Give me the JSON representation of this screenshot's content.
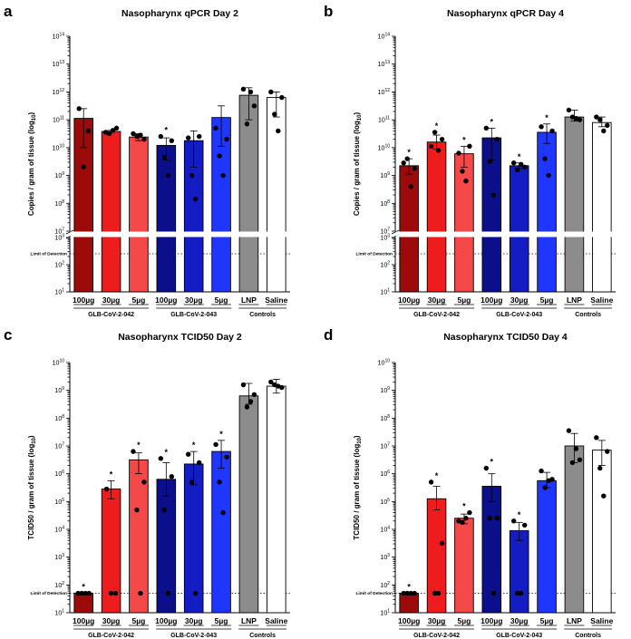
{
  "colors": {
    "dark_red": "#9c0a0a",
    "red": "#ee1c1c",
    "light_red": "#f54848",
    "navy": "#0c0f8c",
    "dark_blue": "#141dc4",
    "blue": "#1f36ff",
    "gray": "#8c8c8c",
    "white": "#ffffff",
    "point": "#000000"
  },
  "shared": {
    "categories": [
      "100µg",
      "30µg",
      "5µg",
      "100µg",
      "30µg",
      "5µg",
      "LNP",
      "Saline"
    ],
    "bar_colors": [
      "dark_red",
      "red",
      "light_red",
      "navy",
      "dark_blue",
      "blue",
      "gray",
      "white"
    ],
    "groups": [
      {
        "label": "GLB-CoV-2-042",
        "from": 0,
        "to": 2
      },
      {
        "label": "GLB-CoV-2-043",
        "from": 3,
        "to": 5
      },
      {
        "label": "Controls",
        "from": 6,
        "to": 7
      }
    ],
    "lod_label": "Limit of Detection"
  },
  "chart_data": [
    {
      "panel": "a",
      "type": "bar",
      "title": "Nasopharynx qPCR Day 2",
      "ylabel": "Copies / gram of tissue (log10)",
      "scale": "log",
      "broken_axis": true,
      "ylim_upper": [
        7,
        14
      ],
      "ylim_lower": [
        1,
        3
      ],
      "lod": 2.4,
      "values_log10": [
        11.05,
        10.58,
        10.38,
        10.08,
        10.25,
        11.08,
        11.88,
        11.8
      ],
      "err_log10": [
        [
          10.0,
          11.4
        ],
        [
          10.55,
          10.62
        ],
        [
          10.25,
          10.5
        ],
        [
          9.55,
          10.35
        ],
        [
          9.3,
          10.6
        ],
        [
          10.05,
          11.5
        ],
        [
          11.0,
          12.15
        ],
        [
          11.1,
          12.0
        ]
      ],
      "points_log10": [
        [
          11.4,
          10.6,
          9.3
        ],
        [
          10.55,
          10.7,
          10.5,
          10.62
        ],
        [
          10.5,
          10.3,
          10.4,
          10.45
        ],
        [
          10.4,
          10.25,
          9.65,
          9.0
        ],
        [
          10.35,
          10.4,
          9.0,
          8.15
        ],
        [
          10.7,
          10.3,
          9.7,
          9.0
        ],
        [
          12.1,
          11.5,
          10.85,
          12.0
        ],
        [
          12.0,
          11.8,
          11.2,
          10.6
        ]
      ],
      "significance": [
        "",
        "",
        "",
        "*",
        "",
        "",
        "",
        ""
      ]
    },
    {
      "panel": "b",
      "type": "bar",
      "title": "Nasopharynx qPCR Day 4",
      "ylabel": "Copies / gram of tissue (log10)",
      "scale": "log",
      "broken_axis": true,
      "ylim_upper": [
        7,
        14
      ],
      "ylim_lower": [
        1,
        3
      ],
      "lod": 2.4,
      "values_log10": [
        9.35,
        10.2,
        9.78,
        10.35,
        9.35,
        10.55,
        11.1,
        10.9
      ],
      "err_log10": [
        [
          9.05,
          9.6
        ],
        [
          9.95,
          10.45
        ],
        [
          9.3,
          10.05
        ],
        [
          9.55,
          10.7
        ],
        [
          9.25,
          9.45
        ],
        [
          10.15,
          10.85
        ],
        [
          10.95,
          11.35
        ],
        [
          10.75,
          11.1
        ]
      ],
      "points_log10": [
        [
          9.45,
          9.25,
          9.6,
          8.6
        ],
        [
          10.05,
          10.3,
          10.55,
          9.9
        ],
        [
          9.8,
          10.05,
          9.15,
          8.8
        ],
        [
          10.7,
          10.3,
          9.5,
          8.3
        ],
        [
          9.45,
          9.3,
          9.2,
          9.4
        ],
        [
          10.75,
          10.6,
          9.6,
          9.0
        ],
        [
          11.35,
          11.0,
          11.1,
          11.05
        ],
        [
          11.1,
          10.8,
          11.0,
          10.6
        ]
      ],
      "significance": [
        "*",
        "*",
        "*",
        "*",
        "*",
        "*",
        "",
        ""
      ]
    },
    {
      "panel": "c",
      "type": "bar",
      "title": "Nasopharynx TCID50 Day 2",
      "ylabel": "TCID50 / gram of tissue (log10)",
      "scale": "log",
      "broken_axis": false,
      "ylim": [
        1,
        10
      ],
      "lod": 1.7,
      "values_log10": [
        1.7,
        5.45,
        6.5,
        5.8,
        6.35,
        6.8,
        8.8,
        9.15
      ],
      "err_log10": [
        [
          1.7,
          1.7
        ],
        [
          5.1,
          5.75
        ],
        [
          6.0,
          6.75
        ],
        [
          5.2,
          6.4
        ],
        [
          5.6,
          6.8
        ],
        [
          6.2,
          7.2
        ],
        [
          8.5,
          9.25
        ],
        [
          8.9,
          9.4
        ]
      ],
      "points_log10": [
        [
          1.7,
          1.7,
          1.7,
          1.7
        ],
        [
          5.45,
          1.7,
          1.7
        ],
        [
          6.8,
          5.7,
          4.7,
          1.7
        ],
        [
          6.55,
          5.9,
          4.7,
          1.7
        ],
        [
          6.7,
          6.4,
          5.7,
          1.7
        ],
        [
          7.05,
          6.6,
          5.7,
          4.6
        ],
        [
          9.2,
          8.85,
          8.4,
          8.6
        ],
        [
          9.3,
          9.1,
          9.2,
          9.15
        ]
      ],
      "significance": [
        "*",
        "*",
        "*",
        "*",
        "*",
        "*",
        "",
        ""
      ]
    },
    {
      "panel": "d",
      "type": "bar",
      "title": "Nasopharynx TCID50 Day 4",
      "ylabel": "TCID50 / gram of tissue (log10)",
      "scale": "log",
      "broken_axis": false,
      "ylim": [
        1,
        10
      ],
      "lod": 1.7,
      "values_log10": [
        1.7,
        5.1,
        4.4,
        5.55,
        3.95,
        5.75,
        7.0,
        6.85
      ],
      "err_log10": [
        [
          1.7,
          1.7
        ],
        [
          4.7,
          5.55
        ],
        [
          4.2,
          4.55
        ],
        [
          5.0,
          6.0
        ],
        [
          3.6,
          4.25
        ],
        [
          5.5,
          6.05
        ],
        [
          6.4,
          7.45
        ],
        [
          6.3,
          7.2
        ]
      ],
      "points_log10": [
        [
          1.7,
          1.7,
          1.7,
          1.7
        ],
        [
          5.7,
          3.5,
          1.7,
          1.7
        ],
        [
          4.3,
          4.6,
          4.25,
          4.4
        ],
        [
          6.2,
          4.4,
          4.4,
          1.7
        ],
        [
          4.3,
          4.15,
          1.7,
          1.7
        ],
        [
          6.1,
          5.8,
          5.5,
          5.75
        ],
        [
          7.55,
          6.5,
          6.4,
          6.9
        ],
        [
          7.3,
          6.8,
          6.2,
          5.2
        ]
      ],
      "significance": [
        "*",
        "*",
        "*",
        "*",
        "*",
        "",
        "",
        ""
      ]
    }
  ]
}
